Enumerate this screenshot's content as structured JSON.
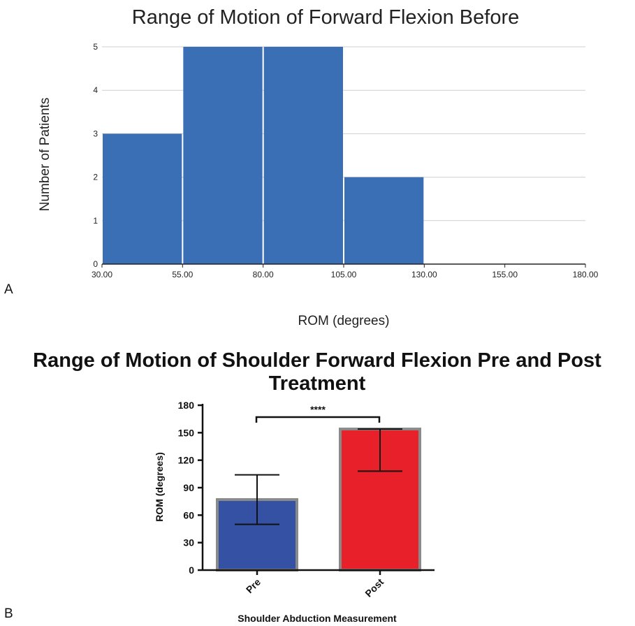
{
  "chart_data": [
    {
      "panel": "A",
      "type": "bar",
      "subtype": "histogram",
      "title": "Range of Motion of Forward Flexion Before",
      "xlabel": "ROM (degrees)",
      "ylabel": "Number of Patients",
      "xticks": [
        "30.00",
        "55.00",
        "80.00",
        "105.00",
        "130.00",
        "155.00",
        "180.00"
      ],
      "xlim": [
        30,
        180
      ],
      "ylim": [
        0,
        5
      ],
      "yticks": [
        "0",
        "1",
        "2",
        "3",
        "4",
        "5"
      ],
      "bins": [
        {
          "from": 30,
          "to": 55,
          "count": 3
        },
        {
          "from": 55,
          "to": 80,
          "count": 5
        },
        {
          "from": 80,
          "to": 105,
          "count": 5
        },
        {
          "from": 105,
          "to": 130,
          "count": 2
        }
      ],
      "bar_color": "#3a6fb5",
      "grid": "horizontal"
    },
    {
      "panel": "B",
      "type": "bar",
      "title_lines": [
        "Range of Motion of Shoulder Forward Flexion Pre and Post",
        "Treatment"
      ],
      "xlabel": "Shoulder Abduction Measurement",
      "ylabel": "ROM (degrees)",
      "ylim": [
        0,
        180
      ],
      "yticks": [
        "0",
        "30",
        "60",
        "90",
        "120",
        "150",
        "180"
      ],
      "categories": [
        "Pre",
        "Post"
      ],
      "values": [
        77,
        154
      ],
      "error_low": [
        50,
        108
      ],
      "error_high": [
        104,
        154
      ],
      "colors": [
        "#3451a3",
        "#e8202a"
      ],
      "significance": "****"
    }
  ]
}
